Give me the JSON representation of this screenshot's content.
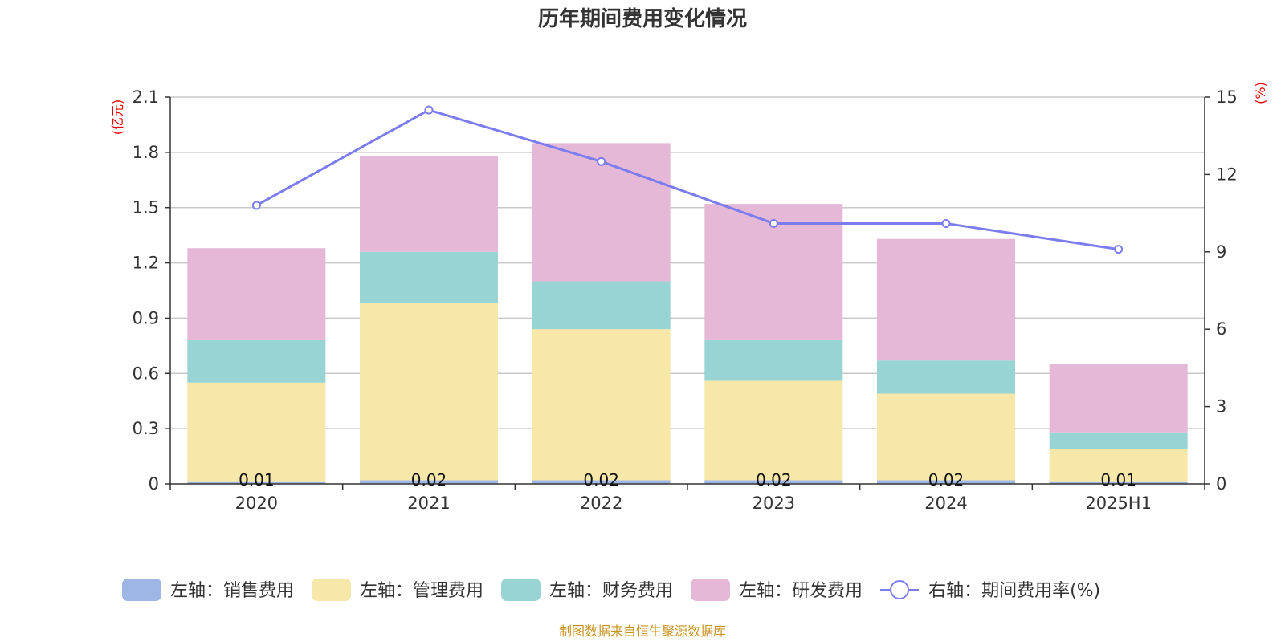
{
  "colors": {
    "sales": "#9db6e3",
    "admin": "#f7e7a9",
    "finance": "#98d4d4",
    "rnd": "#e6b8d8",
    "rate": "#7b7cee",
    "grid": "#c8c8c8",
    "axis": "#333333",
    "unit": "#e60000",
    "source": "#c8921f"
  },
  "chart_data": {
    "type": "bar",
    "stacked": true,
    "title": "历年期间费用变化情况",
    "categories": [
      "2020",
      "2021",
      "2022",
      "2023",
      "2024",
      "2025H1"
    ],
    "left_axis": {
      "unit": "(亿元)",
      "ylim": [
        0,
        2.1
      ],
      "ticks": [
        "0",
        "0.3",
        "0.6",
        "0.9",
        "1.2",
        "1.5",
        "1.8",
        "2.1"
      ]
    },
    "right_axis": {
      "unit": "(%)",
      "ylim": [
        0,
        15
      ],
      "ticks": [
        "0",
        "3",
        "6",
        "9",
        "12",
        "15"
      ]
    },
    "series": [
      {
        "name": "左轴：销售费用",
        "key": "sales",
        "axis": "left",
        "kind": "bar",
        "values": [
          0.01,
          0.02,
          0.02,
          0.02,
          0.02,
          0.01
        ],
        "labels": [
          "0.01",
          "0.02",
          "0.02",
          "0.02",
          "0.02",
          "0.01"
        ]
      },
      {
        "name": "左轴：管理费用",
        "key": "admin",
        "axis": "left",
        "kind": "bar",
        "values": [
          0.54,
          0.96,
          0.82,
          0.54,
          0.47,
          0.18
        ]
      },
      {
        "name": "左轴：财务费用",
        "key": "finance",
        "axis": "left",
        "kind": "bar",
        "values": [
          0.23,
          0.28,
          0.26,
          0.22,
          0.18,
          0.09
        ]
      },
      {
        "name": "左轴：研发费用",
        "key": "rnd",
        "axis": "left",
        "kind": "bar",
        "values": [
          0.5,
          0.52,
          0.75,
          0.74,
          0.66,
          0.37
        ]
      },
      {
        "name": "右轴：期间费用率(%)",
        "key": "rate",
        "axis": "right",
        "kind": "line",
        "values": [
          10.8,
          14.5,
          12.5,
          10.1,
          10.1,
          9.1
        ]
      }
    ],
    "source": "制图数据来自恒生聚源数据库"
  }
}
